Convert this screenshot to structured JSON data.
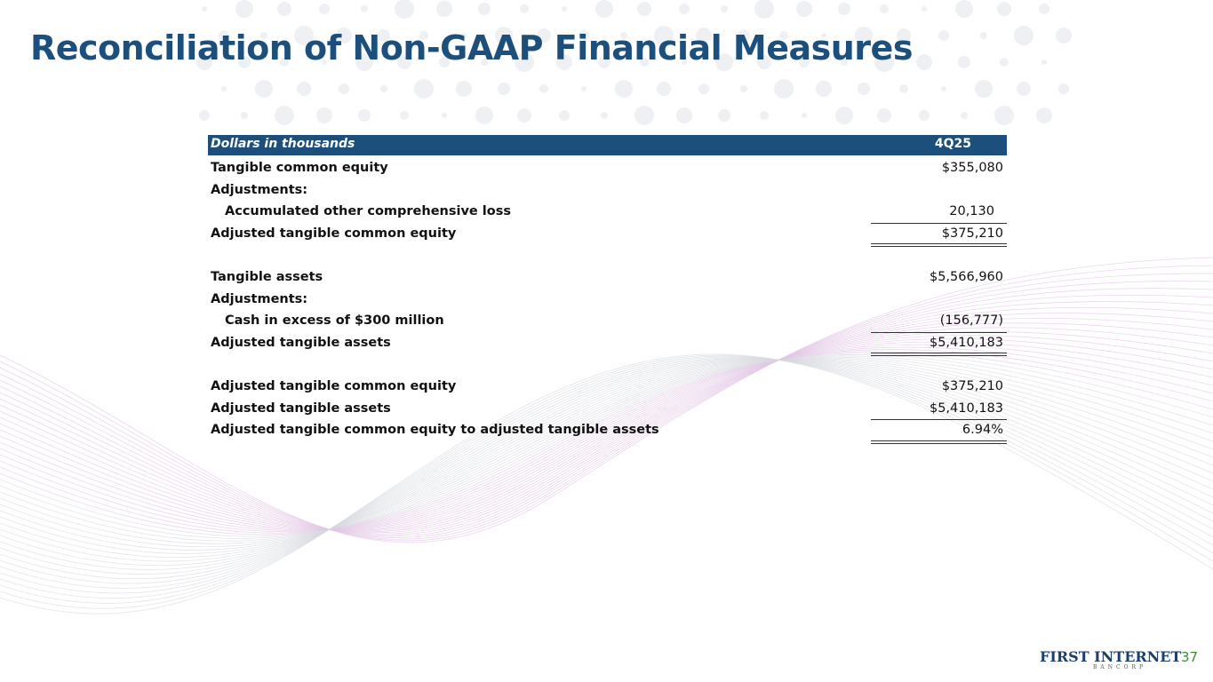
{
  "header": {
    "title": "Reconciliation of Non-GAAP Financial Measures"
  },
  "table": {
    "columns": [
      "Dollars in thousands",
      "4Q25"
    ],
    "rows": [
      [
        "Tangible common equity",
        "$355,080"
      ],
      [
        "Adjustments:",
        ""
      ],
      [
        "Accumulated other comprehensive loss",
        "20,130"
      ],
      [
        "Adjusted tangible common equity",
        "$375,210"
      ],
      [
        "Tangible assets",
        "$5,566,960"
      ],
      [
        "Adjustments:",
        ""
      ],
      [
        "Cash in excess of $300 million",
        "(156,777)"
      ],
      [
        "Adjusted tangible assets",
        "$5,410,183"
      ],
      [
        "Adjusted tangible common equity",
        "$375,210"
      ],
      [
        "Adjusted tangible assets",
        "$5,410,183"
      ],
      [
        "Adjusted tangible common equity to adjusted tangible assets",
        "6.94%"
      ]
    ]
  },
  "footer": {
    "logo": "FIRST INTERNET",
    "logo_sub": "BANCORP",
    "page": "37"
  }
}
